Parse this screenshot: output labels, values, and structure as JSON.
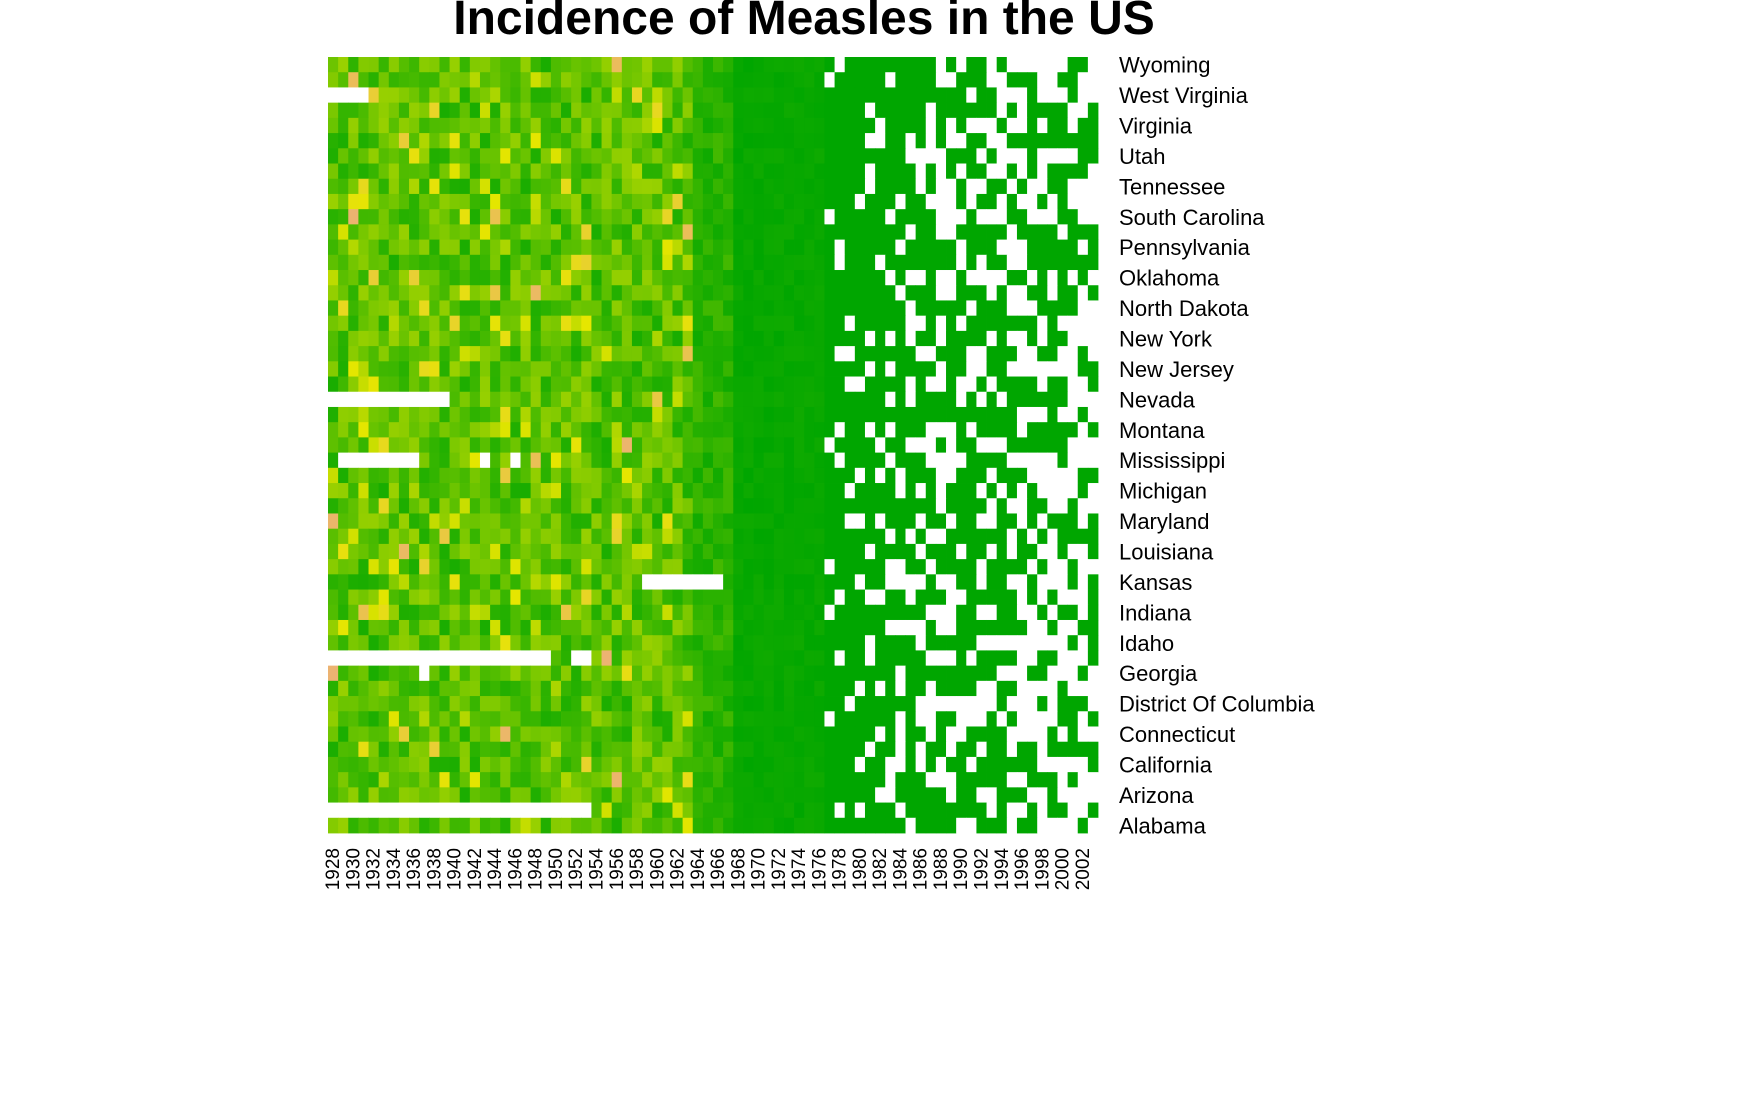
{
  "chart_data": {
    "type": "heatmap",
    "title": "Incidence of Measles in the US",
    "xlabel": "",
    "ylabel": "",
    "x_tick_labels": [
      "1928",
      "1930",
      "1932",
      "1934",
      "1936",
      "1938",
      "1940",
      "1942",
      "1944",
      "1946",
      "1948",
      "1950",
      "1952",
      "1954",
      "1956",
      "1958",
      "1960",
      "1962",
      "1964",
      "1966",
      "1968",
      "1970",
      "1972",
      "1974",
      "1976",
      "1978",
      "1980",
      "1982",
      "1984",
      "1986",
      "1988",
      "1990",
      "1992",
      "1994",
      "1996",
      "1998",
      "2000",
      "2002"
    ],
    "x_range": [
      1928,
      2003
    ],
    "y_tick_labels": [
      "Wyoming",
      "West Virginia",
      "Virginia",
      "Utah",
      "Tennessee",
      "South Carolina",
      "Pennsylvania",
      "Oklahoma",
      "North Dakota",
      "New York",
      "New Jersey",
      "Nevada",
      "Montana",
      "Mississippi",
      "Michigan",
      "Maryland",
      "Louisiana",
      "Kansas",
      "Indiana",
      "Idaho",
      "Georgia",
      "District Of Columbia",
      "Connecticut",
      "California",
      "Arizona",
      "Alabama"
    ],
    "row_count": 51,
    "colorscale": [
      "#00a600",
      "#e6e600",
      "#ecb176"
    ],
    "missing_color": "#ffffff",
    "legend": "none",
    "grid": false
  }
}
